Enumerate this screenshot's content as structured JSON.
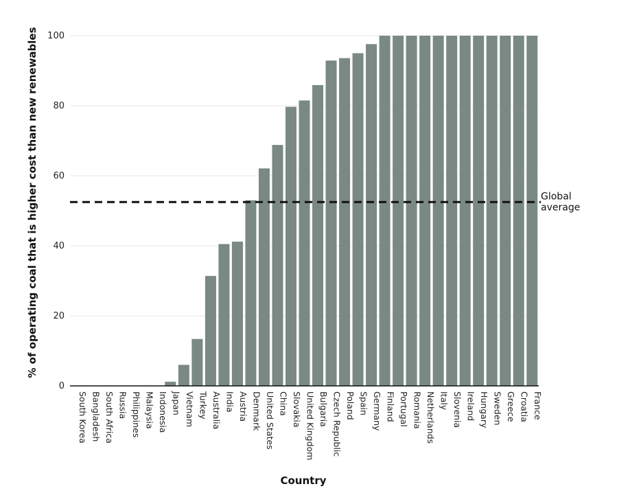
{
  "chart_data": {
    "type": "bar",
    "title": "",
    "xlabel": "Country",
    "ylabel": "% of operating coal that is higher cost than new renewables",
    "ylim": [
      0,
      100
    ],
    "yticks": [
      0,
      20,
      40,
      60,
      80,
      100
    ],
    "grid": "horizontal",
    "bar_color": "#7a8984",
    "categories": [
      "South Korea",
      "Bangladesh",
      "South Africa",
      "Russia",
      "Philippines",
      "Malaysia",
      "Indonesia",
      "Japan",
      "Vietnam",
      "Turkey",
      "Australia",
      "India",
      "Austria",
      "Denmark",
      "United States",
      "China",
      "Slovakia",
      "United Kingdom",
      "Bulgaria",
      "Czech Republic",
      "Poland",
      "Spain",
      "Germany",
      "Finland",
      "Portugal",
      "Romania",
      "Netherlands",
      "Italy",
      "Slovenia",
      "Ireland",
      "Hungary",
      "Sweden",
      "Greece",
      "Croatia",
      "France"
    ],
    "values": [
      0,
      0,
      0,
      0,
      0,
      0,
      0,
      1.2,
      6,
      13.4,
      31.4,
      40.5,
      41.2,
      53,
      62.1,
      68.8,
      79.7,
      81.5,
      85.9,
      92.9,
      93.6,
      95,
      97.6,
      100,
      100,
      100,
      100,
      100,
      100,
      100,
      100,
      100,
      100,
      100,
      100
    ],
    "reference_line": {
      "value": 52.5,
      "label_lines": [
        "Global",
        "average"
      ]
    }
  }
}
